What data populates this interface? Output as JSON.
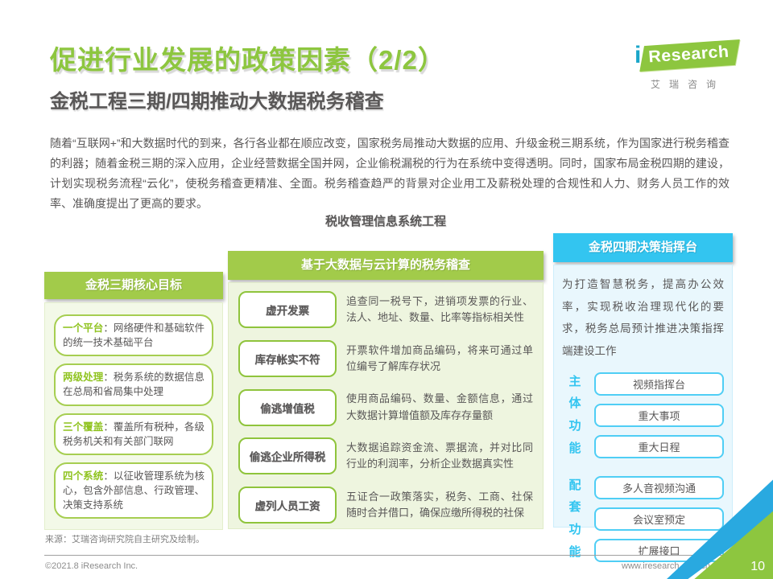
{
  "header": {
    "title": "促进行业发展的政策因素（2/2）",
    "subtitle": "金税工程三期/四期推动大数据税务稽查",
    "logo": {
      "i": "i",
      "research": "Research",
      "cn_name": "艾瑞咨询"
    }
  },
  "intro_paragraph": "随着“互联网+”和大数据时代的到来，各行各业都在顺应改变，国家税务局推动大数据的应用、升级金税三期系统，作为国家进行税务稽查的利器；随着金税三期的深入应用，企业经营数据全国并网，企业偷税漏税的行为在系统中变得透明。同时，国家布局金税四期的建设，计划实现税务流程“云化”，使税务稽查更精准、全面。税务稽查趋严的背景对企业用工及薪税处理的合规性和人力、财务人员工作的效率、准确度提出了更高的要求。",
  "diagram": {
    "title": "税收管理信息系统工程",
    "left_panel": {
      "header": "金税三期核心目标",
      "items": [
        {
          "label": "一个平台",
          "text": "：网络硬件和基础软件的统一技术基础平台"
        },
        {
          "label": "两级处理",
          "text": "：税务系统的数据信息在总局和省局集中处理"
        },
        {
          "label": "三个覆盖",
          "text": "：覆盖所有税种，各级税务机关和有关部门联网"
        },
        {
          "label": "四个系统",
          "text": "：以征收管理系统为核心，包含外部信息、行政管理、决策支持系统"
        }
      ]
    },
    "middle_panel": {
      "header": "基于大数据与云计算的税务稽查",
      "rows": [
        {
          "label": "虚开发票",
          "desc": "追查同一税号下，进销项发票的行业、法人、地址、数量、比率等指标相关性"
        },
        {
          "label": "库存帐实不符",
          "desc": "开票软件增加商品编码，将来可通过单位编号了解库存状况"
        },
        {
          "label": "偷逃增值税",
          "desc": "使用商品编码、数量、金额信息，通过大数据计算增值额及库存存量额"
        },
        {
          "label": "偷逃企业所得税",
          "desc": "大数据追踪资金流、票据流，并对比同行业的利润率，分析企业数据真实性"
        },
        {
          "label": "虚列人员工资",
          "desc": "五证合一政策落实，税务、工商、社保随时合并借口，确保应缴所得税的社保"
        }
      ]
    },
    "right_panel": {
      "header": "金税四期决策指挥台",
      "intro": "为打造智慧税务，提高办公效率，实现税收治理现代化的要求，税务总局预计推进决策指挥端建设工作",
      "groups": [
        {
          "label": "主体功能",
          "boxes": [
            "视频指挥台",
            "重大事项",
            "重大日程"
          ]
        },
        {
          "label": "配套功能",
          "boxes": [
            "多人音视频沟通",
            "会议室预定",
            "扩展接口"
          ]
        }
      ]
    }
  },
  "footer": {
    "source": "来源：艾瑞咨询研究院自主研究及绘制。",
    "copyright": "©2021.8 iResearch Inc.",
    "website": "www.iresearch.com.cn",
    "page_number": "10"
  },
  "colors": {
    "brand_green": "#8dc63f",
    "header_green": "#a2cb4a",
    "header_cyan": "#33c5f0",
    "text_dark": "#595757",
    "corner_blue": "#29a9e0"
  }
}
